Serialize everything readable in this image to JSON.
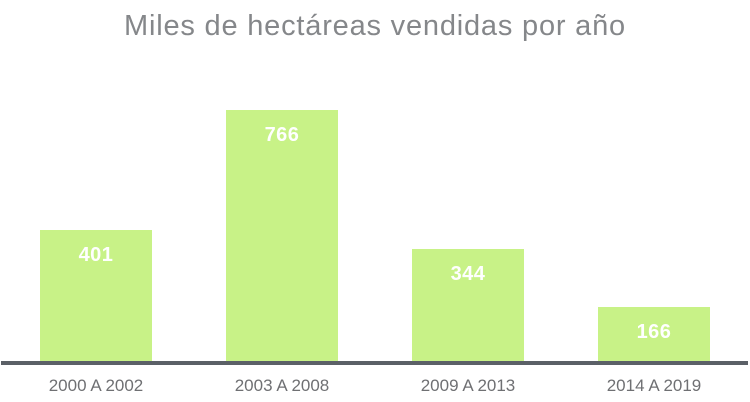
{
  "chart_data": {
    "type": "bar",
    "title": "Miles de hectáreas vendidas por año",
    "categories": [
      "2000 A 2002",
      "2003 A 2008",
      "2009 A 2013",
      "2014 A 2019"
    ],
    "values": [
      401,
      766,
      344,
      166
    ],
    "xlabel": "",
    "ylabel": "",
    "ylim": [
      0,
      780
    ],
    "grid": false,
    "legend": false,
    "value_labels_position": "inside-top",
    "bar_color": "#C8F287",
    "value_label_color": "#FFFFFF",
    "title_color": "#85878A",
    "tick_label_color": "#6F7073",
    "axis_line_color": "#5B6067",
    "background_color": "#FFFFFF"
  }
}
